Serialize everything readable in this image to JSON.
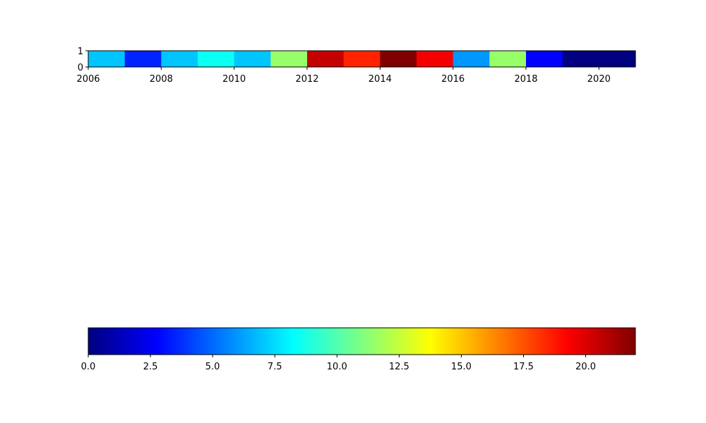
{
  "chart_data": [
    {
      "type": "heatmap",
      "title": "",
      "xlabel": "",
      "ylabel": "",
      "x_range": [
        2006,
        2021
      ],
      "y_range": [
        0,
        1
      ],
      "x_ticks": [
        2006,
        2008,
        2010,
        2012,
        2014,
        2016,
        2018,
        2020
      ],
      "y_ticks": [
        0,
        1
      ],
      "years": [
        2006,
        2007,
        2008,
        2009,
        2010,
        2011,
        2012,
        2013,
        2014,
        2015,
        2016,
        2017,
        2018,
        2019,
        2020
      ],
      "values": [
        7.0,
        3.5,
        7.0,
        8.5,
        7.0,
        11.5,
        20.5,
        18.5,
        22.0,
        19.5,
        6.0,
        11.5,
        2.8,
        0.0,
        0.0
      ],
      "grid": false
    },
    {
      "type": "colorbar",
      "colormap": "jet",
      "range": [
        0,
        22
      ],
      "ticks": [
        0.0,
        2.5,
        5.0,
        7.5,
        10.0,
        12.5,
        15.0,
        17.5,
        20.0
      ],
      "tick_labels": [
        "0.0",
        "2.5",
        "5.0",
        "7.5",
        "10.0",
        "12.5",
        "15.0",
        "17.5",
        "20.0"
      ],
      "orientation": "horizontal",
      "placement": "bottom"
    }
  ]
}
